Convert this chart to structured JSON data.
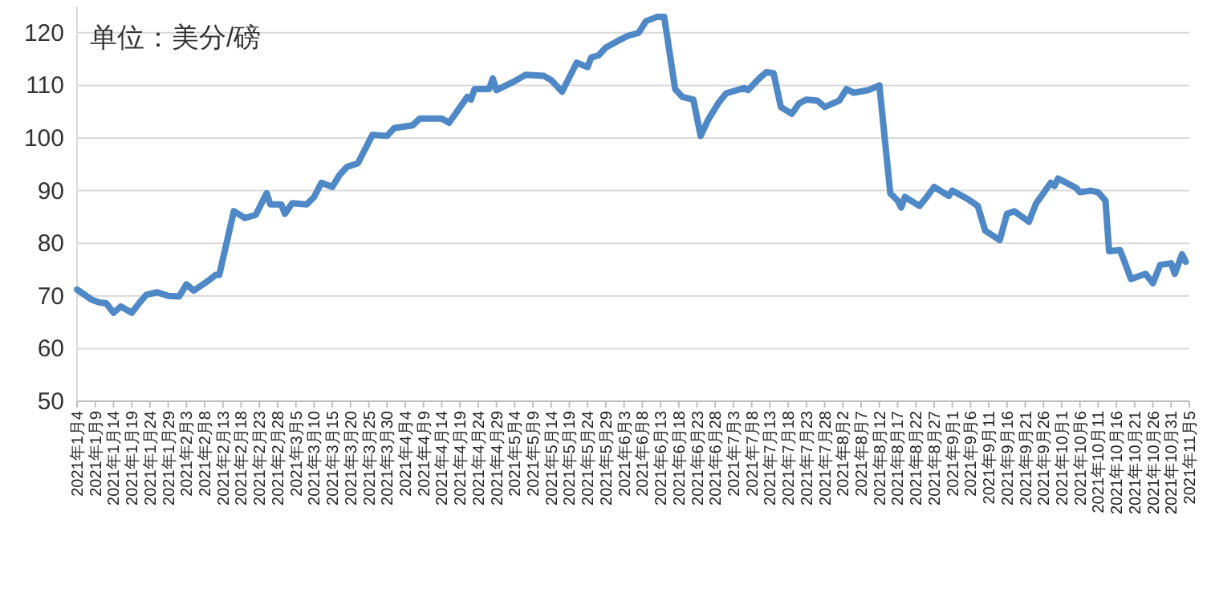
{
  "chart_data": {
    "type": "line",
    "annotations": [
      "单位：美分/磅"
    ],
    "x": [
      "2021-01-04",
      "2021-01-08",
      "2021-01-10",
      "2021-01-12",
      "2021-01-14",
      "2021-01-16",
      "2021-01-19",
      "2021-01-21",
      "2021-01-23",
      "2021-01-26",
      "2021-01-29",
      "2021-02-01",
      "2021-02-03",
      "2021-02-05",
      "2021-02-09",
      "2021-02-11",
      "2021-02-12",
      "2021-02-16",
      "2021-02-19",
      "2021-02-22",
      "2021-02-25",
      "2021-02-26",
      "2021-03-01",
      "2021-03-02",
      "2021-03-04",
      "2021-03-08",
      "2021-03-10",
      "2021-03-12",
      "2021-03-15",
      "2021-03-17",
      "2021-03-19",
      "2021-03-22",
      "2021-03-26",
      "2021-03-30",
      "2021-04-01",
      "2021-04-06",
      "2021-04-08",
      "2021-04-14",
      "2021-04-16",
      "2021-04-21",
      "2021-04-22",
      "2021-04-23",
      "2021-04-27",
      "2021-04-28",
      "2021-04-29",
      "2021-05-04",
      "2021-05-07",
      "2021-05-12",
      "2021-05-14",
      "2021-05-17",
      "2021-05-21",
      "2021-05-24",
      "2021-05-25",
      "2021-05-27",
      "2021-05-29",
      "2021-06-02",
      "2021-06-04",
      "2021-06-07",
      "2021-06-09",
      "2021-06-12",
      "2021-06-14",
      "2021-06-17",
      "2021-06-19",
      "2021-06-22",
      "2021-06-24",
      "2021-06-26",
      "2021-06-29",
      "2021-07-01",
      "2021-07-06",
      "2021-07-07",
      "2021-07-10",
      "2021-07-12",
      "2021-07-14",
      "2021-07-16",
      "2021-07-19",
      "2021-07-21",
      "2021-07-23",
      "2021-07-26",
      "2021-07-28",
      "2021-08-01",
      "2021-08-03",
      "2021-08-05",
      "2021-08-09",
      "2021-08-12",
      "2021-08-15",
      "2021-08-17",
      "2021-08-18",
      "2021-08-19",
      "2021-08-23",
      "2021-08-25",
      "2021-08-27",
      "2021-08-28",
      "2021-08-31",
      "2021-09-01",
      "2021-09-05",
      "2021-09-08",
      "2021-09-10",
      "2021-09-14",
      "2021-09-16",
      "2021-09-18",
      "2021-09-22",
      "2021-09-24",
      "2021-09-28",
      "2021-09-29",
      "2021-09-30",
      "2021-10-05",
      "2021-10-06",
      "2021-10-09",
      "2021-10-11",
      "2021-10-13",
      "2021-10-14",
      "2021-10-17",
      "2021-10-18",
      "2021-10-20",
      "2021-10-24",
      "2021-10-26",
      "2021-10-28",
      "2021-10-31",
      "2021-11-01",
      "2021-11-03",
      "2021-11-04"
    ],
    "series": [
      {
        "color": "#4f88c6",
        "values": [
          71.2,
          69.3,
          68.8,
          68.6,
          66.8,
          68.0,
          66.8,
          68.6,
          70.2,
          70.7,
          70.0,
          69.9,
          72.2,
          71.0,
          72.9,
          74.0,
          74.0,
          86.1,
          84.8,
          85.4,
          89.5,
          87.4,
          87.4,
          85.6,
          87.6,
          87.4,
          88.8,
          91.5,
          90.7,
          93.0,
          94.5,
          95.2,
          100.6,
          100.4,
          101.9,
          102.4,
          103.7,
          103.7,
          102.9,
          107.8,
          107.3,
          109.3,
          109.3,
          111.3,
          109.1,
          110.8,
          112.0,
          111.8,
          111.0,
          108.8,
          114.3,
          113.5,
          115.3,
          115.7,
          117.2,
          118.7,
          119.4,
          120.0,
          122.2,
          123.0,
          123.0,
          109.3,
          107.8,
          107.3,
          100.4,
          103.4,
          106.8,
          108.5,
          109.5,
          109.1,
          111.3,
          112.5,
          112.3,
          105.9,
          104.6,
          106.6,
          107.3,
          107.1,
          105.9,
          107.1,
          109.3,
          108.6,
          109.1,
          110.0,
          89.5,
          88.1,
          86.8,
          88.8,
          87.1,
          88.8,
          90.7,
          90.3,
          89.0,
          90.0,
          88.5,
          87.1,
          82.4,
          80.6,
          85.6,
          86.1,
          84.1,
          87.6,
          91.5,
          90.9,
          92.3,
          90.5,
          89.7,
          90.0,
          89.7,
          88.1,
          78.5,
          78.7,
          76.9,
          73.2,
          74.2,
          72.4,
          75.9,
          76.2,
          74.2,
          77.9,
          76.5
        ]
      }
    ],
    "xlim": [
      "2021-01-04",
      "2021-11-05"
    ],
    "xticks": [
      {
        "value": "2021-01-04",
        "label": "2021年1月4"
      },
      {
        "value": "2021-01-09",
        "label": "2021年1月9"
      },
      {
        "value": "2021-01-14",
        "label": "2021年1月14"
      },
      {
        "value": "2021-01-19",
        "label": "2021年1月19"
      },
      {
        "value": "2021-01-24",
        "label": "2021年1月24"
      },
      {
        "value": "2021-01-29",
        "label": "2021年1月29"
      },
      {
        "value": "2021-02-03",
        "label": "2021年2月3"
      },
      {
        "value": "2021-02-08",
        "label": "2021年2月8"
      },
      {
        "value": "2021-02-13",
        "label": "2021年2月13"
      },
      {
        "value": "2021-02-18",
        "label": "2021年2月18"
      },
      {
        "value": "2021-02-23",
        "label": "2021年2月23"
      },
      {
        "value": "2021-02-28",
        "label": "2021年2月28"
      },
      {
        "value": "2021-03-05",
        "label": "2021年3月5"
      },
      {
        "value": "2021-03-10",
        "label": "2021年3月10"
      },
      {
        "value": "2021-03-15",
        "label": "2021年3月15"
      },
      {
        "value": "2021-03-20",
        "label": "2021年3月20"
      },
      {
        "value": "2021-03-25",
        "label": "2021年3月25"
      },
      {
        "value": "2021-03-30",
        "label": "2021年3月30"
      },
      {
        "value": "2021-04-04",
        "label": "2021年4月4"
      },
      {
        "value": "2021-04-09",
        "label": "2021年4月9"
      },
      {
        "value": "2021-04-14",
        "label": "2021年4月14"
      },
      {
        "value": "2021-04-19",
        "label": "2021年4月19"
      },
      {
        "value": "2021-04-24",
        "label": "2021年4月24"
      },
      {
        "value": "2021-04-29",
        "label": "2021年4月29"
      },
      {
        "value": "2021-05-04",
        "label": "2021年5月4"
      },
      {
        "value": "2021-05-09",
        "label": "2021年5月9"
      },
      {
        "value": "2021-05-14",
        "label": "2021年5月14"
      },
      {
        "value": "2021-05-19",
        "label": "2021年5月19"
      },
      {
        "value": "2021-05-24",
        "label": "2021年5月24"
      },
      {
        "value": "2021-05-29",
        "label": "2021年5月29"
      },
      {
        "value": "2021-06-03",
        "label": "2021年6月3"
      },
      {
        "value": "2021-06-08",
        "label": "2021年6月8"
      },
      {
        "value": "2021-06-13",
        "label": "2021年6月13"
      },
      {
        "value": "2021-06-18",
        "label": "2021年6月18"
      },
      {
        "value": "2021-06-23",
        "label": "2021年6月23"
      },
      {
        "value": "2021-06-28",
        "label": "2021年6月28"
      },
      {
        "value": "2021-07-03",
        "label": "2021年7月3"
      },
      {
        "value": "2021-07-08",
        "label": "2021年7月8"
      },
      {
        "value": "2021-07-13",
        "label": "2021年7月13"
      },
      {
        "value": "2021-07-18",
        "label": "2021年7月18"
      },
      {
        "value": "2021-07-23",
        "label": "2021年7月23"
      },
      {
        "value": "2021-07-28",
        "label": "2021年7月28"
      },
      {
        "value": "2021-08-02",
        "label": "2021年8月2"
      },
      {
        "value": "2021-08-07",
        "label": "2021年8月7"
      },
      {
        "value": "2021-08-12",
        "label": "2021年8月12"
      },
      {
        "value": "2021-08-17",
        "label": "2021年8月17"
      },
      {
        "value": "2021-08-22",
        "label": "2021年8月22"
      },
      {
        "value": "2021-08-27",
        "label": "2021年8月27"
      },
      {
        "value": "2021-09-01",
        "label": "2021年9月1"
      },
      {
        "value": "2021-09-06",
        "label": "2021年9月6"
      },
      {
        "value": "2021-09-11",
        "label": "2021年9月11"
      },
      {
        "value": "2021-09-16",
        "label": "2021年9月16"
      },
      {
        "value": "2021-09-21",
        "label": "2021年9月21"
      },
      {
        "value": "2021-09-26",
        "label": "2021年9月26"
      },
      {
        "value": "2021-10-01",
        "label": "2021年10月1"
      },
      {
        "value": "2021-10-06",
        "label": "2021年10月6"
      },
      {
        "value": "2021-10-11",
        "label": "2021年10月11"
      },
      {
        "value": "2021-10-16",
        "label": "2021年10月16"
      },
      {
        "value": "2021-10-21",
        "label": "2021年10月21"
      },
      {
        "value": "2021-10-26",
        "label": "2021年10月26"
      },
      {
        "value": "2021-10-31",
        "label": "2021年10月31"
      },
      {
        "value": "2021-11-05",
        "label": "2021年11月5"
      }
    ],
    "ylim": [
      50,
      125
    ],
    "yticks": [
      50,
      60,
      70,
      80,
      90,
      100,
      110,
      120
    ],
    "grid": "y",
    "line_style": "solid",
    "marker": "none"
  }
}
